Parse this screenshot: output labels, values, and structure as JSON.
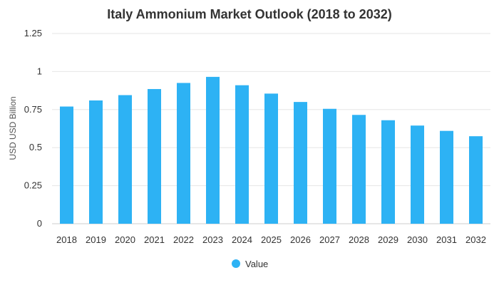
{
  "chart_data": {
    "type": "bar",
    "title": "Italy Ammonium Market Outlook (2018 to 2032)",
    "xlabel": "",
    "ylabel": "USD USD Billion",
    "ylim": [
      0,
      1.25
    ],
    "yticks": [
      0,
      0.25,
      0.5,
      0.75,
      1,
      1.25
    ],
    "ytick_labels": [
      "0",
      "0.25",
      "0.5",
      "0.75",
      "1",
      "1.25"
    ],
    "categories": [
      "2018",
      "2019",
      "2020",
      "2021",
      "2022",
      "2023",
      "2024",
      "2025",
      "2026",
      "2027",
      "2028",
      "2029",
      "2030",
      "2031",
      "2032"
    ],
    "series": [
      {
        "name": "Value",
        "color": "#2db2f4",
        "values": [
          0.77,
          0.81,
          0.845,
          0.885,
          0.925,
          0.965,
          0.91,
          0.855,
          0.8,
          0.755,
          0.715,
          0.68,
          0.645,
          0.61,
          0.575
        ]
      }
    ],
    "grid": true,
    "legend_position": "bottom-center"
  }
}
